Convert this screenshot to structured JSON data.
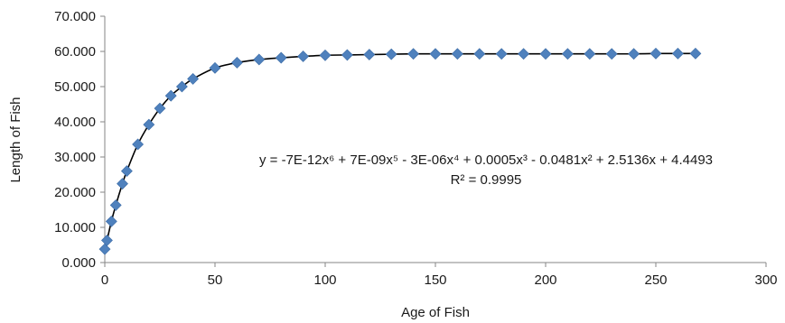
{
  "chart_data": {
    "type": "scatter",
    "title": "",
    "xlabel": "Age of Fish",
    "ylabel": "Length of Fish",
    "xlim": [
      0,
      300
    ],
    "ylim": [
      0,
      70
    ],
    "x_ticks": [
      "0",
      "50",
      "100",
      "150",
      "200",
      "250",
      "300"
    ],
    "y_ticks": [
      "0.000",
      "10.000",
      "20.000",
      "30.000",
      "40.000",
      "50.000",
      "60.000",
      "70.000"
    ],
    "grid": false,
    "legend": "none",
    "marker": "diamond",
    "marker_color": "#4f81bd",
    "trendline_color": "#000000",
    "series": [
      {
        "x": [
          0,
          1,
          3,
          5,
          8,
          10,
          15,
          20,
          25,
          30,
          35,
          40,
          50,
          60,
          70,
          80,
          90,
          100,
          110,
          120,
          130,
          140,
          150,
          160,
          170,
          180,
          190,
          200,
          210,
          220,
          230,
          240,
          250,
          260,
          268
        ],
        "y": [
          3.8,
          6.3,
          11.7,
          16.3,
          22.4,
          26.0,
          33.6,
          39.2,
          43.8,
          47.4,
          50.0,
          52.2,
          55.3,
          56.8,
          57.7,
          58.2,
          58.6,
          58.9,
          59.0,
          59.1,
          59.2,
          59.3,
          59.3,
          59.3,
          59.3,
          59.3,
          59.3,
          59.3,
          59.3,
          59.3,
          59.3,
          59.3,
          59.4,
          59.4,
          59.4
        ]
      }
    ],
    "trendline": {
      "type": "polynomial",
      "order": 6,
      "equation": "y = -7E-12x⁶ + 7E-09x⁵ - 3E-06x⁴ + 0.0005x³ - 0.0481x² + 2.5136x + 4.4493",
      "r_squared": "R² = 0.9995"
    }
  }
}
